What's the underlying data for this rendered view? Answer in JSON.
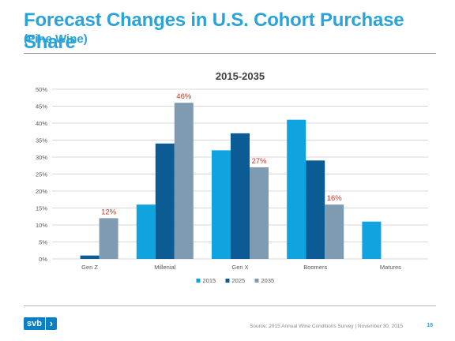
{
  "slide": {
    "title": "Forecast Changes in U.S. Cohort Purchase Share",
    "subtitle": "(Fine Wine)",
    "source": "Source: 2015 Annual Wine Conditions Survey | November 30, 2015",
    "page_number": "18",
    "logo_text": "svb",
    "logo_icon": "chevron-right-icon"
  },
  "chart_data": {
    "type": "bar",
    "title": "2015-2035",
    "categories": [
      "Gen Z",
      "Millenial",
      "Gen X",
      "Boomers",
      "Matures"
    ],
    "series": [
      {
        "name": "2015",
        "values": [
          0,
          16,
          32,
          41,
          11
        ],
        "color": "#0fa3e0"
      },
      {
        "name": "2025",
        "values": [
          1,
          34,
          37,
          29,
          0
        ],
        "color": "#0b5b94"
      },
      {
        "name": "2035",
        "values": [
          12,
          46,
          27,
          16,
          0
        ],
        "color": "#7f9bb2"
      }
    ],
    "ylim": [
      0,
      50
    ],
    "yticks": [
      "0%",
      "5%",
      "10%",
      "15%",
      "20%",
      "25%",
      "30%",
      "35%",
      "40%",
      "45%",
      "50%"
    ],
    "grid": true,
    "legend": "bottom",
    "annotations": [
      {
        "category": "Gen Z",
        "series": "2035",
        "label": "12%"
      },
      {
        "category": "Millenial",
        "series": "2035",
        "label": "46%"
      },
      {
        "category": "Gen X",
        "series": "2035",
        "label": "27%"
      },
      {
        "category": "Boomers",
        "series": "2035",
        "label": "16%"
      }
    ],
    "annotation_color": "#c0392b",
    "gridline_color": "#d9d9d9",
    "axis_text_color": "#595959"
  }
}
